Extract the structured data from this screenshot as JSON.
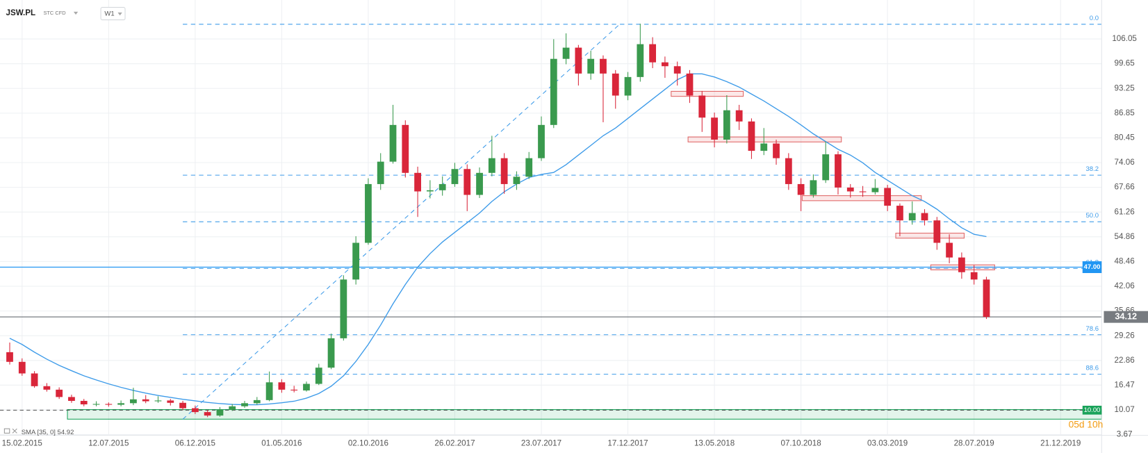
{
  "chart_data": {
    "type": "candlestick",
    "title": "JSW.PL",
    "subtitle": "STC CFD",
    "timeframe": "W1",
    "countdown": "05d 10h",
    "up_color": "#3a9a4e",
    "down_color": "#d9263a",
    "grid": true,
    "x": [
      -3,
      0,
      3,
      6,
      9,
      12,
      15,
      18,
      21,
      24,
      27,
      30,
      33,
      36,
      39,
      42,
      45,
      48,
      51,
      54,
      57,
      60,
      63,
      66,
      69,
      72,
      75,
      78,
      81,
      84,
      87,
      90,
      93,
      96,
      99,
      102,
      105,
      108,
      111,
      114,
      117,
      120,
      123,
      126,
      129,
      132,
      135,
      138,
      141,
      144,
      147,
      150,
      153,
      156,
      159,
      162,
      165,
      168,
      171,
      174,
      177,
      180,
      183,
      186,
      189,
      192,
      195,
      198,
      201,
      204,
      207,
      210,
      213,
      216,
      219,
      222,
      225,
      228,
      231,
      234
    ],
    "ohlc": [
      [
        25.0,
        27.5,
        21.8,
        22.5
      ],
      [
        22.5,
        23.4,
        18.9,
        19.5
      ],
      [
        19.5,
        20.1,
        15.8,
        16.2
      ],
      [
        16.2,
        17.0,
        14.8,
        15.3
      ],
      [
        15.3,
        15.9,
        12.9,
        13.4
      ],
      [
        13.4,
        14.0,
        11.9,
        12.4
      ],
      [
        12.4,
        12.9,
        11.0,
        11.5
      ],
      [
        11.5,
        12.3,
        11.0,
        11.6
      ],
      [
        11.6,
        12.0,
        10.9,
        11.4
      ],
      [
        11.4,
        12.5,
        11.0,
        11.8
      ],
      [
        11.8,
        15.8,
        11.3,
        12.8
      ],
      [
        12.8,
        13.9,
        11.8,
        12.3
      ],
      [
        12.3,
        13.6,
        11.9,
        12.5
      ],
      [
        12.5,
        12.9,
        11.2,
        11.9
      ],
      [
        11.9,
        12.4,
        10.0,
        10.5
      ],
      [
        10.5,
        11.2,
        9.0,
        9.5
      ],
      [
        9.5,
        10.0,
        8.2,
        8.6
      ],
      [
        8.6,
        10.8,
        8.3,
        10.1
      ],
      [
        10.1,
        11.6,
        9.8,
        11.0
      ],
      [
        11.0,
        12.4,
        10.6,
        11.8
      ],
      [
        11.8,
        13.4,
        11.4,
        12.6
      ],
      [
        12.6,
        20.0,
        12.3,
        17.2
      ],
      [
        17.2,
        18.0,
        14.5,
        15.3
      ],
      [
        15.3,
        16.3,
        14.6,
        15.1
      ],
      [
        15.1,
        17.4,
        14.8,
        16.8
      ],
      [
        16.8,
        22.0,
        16.5,
        21.0
      ],
      [
        21.0,
        29.8,
        20.6,
        28.6
      ],
      [
        28.6,
        44.9,
        28.0,
        43.8
      ],
      [
        43.8,
        55.0,
        42.5,
        53.3
      ],
      [
        53.3,
        70.0,
        52.8,
        68.5
      ],
      [
        68.5,
        76.5,
        67.0,
        74.3
      ],
      [
        74.3,
        89.0,
        73.8,
        83.8
      ],
      [
        83.8,
        85.0,
        70.2,
        71.4
      ],
      [
        71.4,
        73.0,
        60.0,
        66.6
      ],
      [
        66.6,
        69.5,
        64.8,
        66.9
      ],
      [
        66.9,
        70.5,
        65.5,
        68.5
      ],
      [
        68.5,
        74.0,
        67.8,
        72.4
      ],
      [
        72.4,
        73.6,
        61.5,
        65.7
      ],
      [
        65.7,
        72.8,
        64.9,
        71.4
      ],
      [
        71.4,
        81.0,
        70.5,
        75.2
      ],
      [
        75.2,
        76.5,
        66.0,
        68.5
      ],
      [
        68.5,
        71.8,
        67.0,
        70.4
      ],
      [
        70.4,
        76.8,
        69.8,
        75.2
      ],
      [
        75.2,
        86.0,
        74.5,
        83.8
      ],
      [
        83.8,
        106.0,
        83.0,
        100.9
      ],
      [
        100.9,
        107.5,
        99.5,
        103.8
      ],
      [
        103.8,
        104.5,
        94.0,
        97.1
      ],
      [
        97.1,
        103.0,
        95.5,
        100.9
      ],
      [
        100.9,
        101.8,
        84.5,
        97.1
      ],
      [
        97.1,
        98.0,
        88.0,
        91.4
      ],
      [
        91.4,
        97.5,
        90.2,
        96.2
      ],
      [
        96.2,
        110.0,
        95.0,
        104.7
      ],
      [
        104.7,
        106.5,
        98.5,
        100.0
      ],
      [
        100.0,
        101.5,
        96.0,
        99.0
      ],
      [
        99.0,
        100.2,
        94.0,
        97.1
      ],
      [
        97.1,
        98.0,
        89.5,
        91.4
      ],
      [
        91.4,
        92.6,
        82.0,
        85.7
      ],
      [
        85.7,
        87.0,
        78.0,
        80.0
      ],
      [
        80.0,
        91.5,
        79.0,
        87.6
      ],
      [
        87.6,
        89.0,
        82.5,
        84.7
      ],
      [
        84.7,
        85.5,
        75.0,
        77.1
      ],
      [
        77.1,
        83.0,
        76.0,
        79.0
      ],
      [
        79.0,
        80.0,
        73.5,
        75.2
      ],
      [
        75.2,
        76.5,
        67.0,
        68.5
      ],
      [
        68.5,
        70.0,
        61.5,
        65.7
      ],
      [
        65.7,
        71.0,
        65.0,
        69.5
      ],
      [
        69.5,
        79.5,
        68.8,
        76.2
      ],
      [
        76.2,
        77.0,
        65.8,
        67.6
      ],
      [
        67.6,
        68.5,
        65.0,
        66.6
      ],
      [
        66.6,
        68.0,
        65.2,
        66.4
      ],
      [
        66.4,
        69.8,
        65.8,
        67.5
      ],
      [
        67.5,
        68.3,
        61.5,
        62.9
      ],
      [
        62.9,
        63.5,
        55.0,
        59.1
      ],
      [
        59.1,
        64.0,
        58.0,
        61.0
      ],
      [
        61.0,
        62.0,
        57.8,
        59.1
      ],
      [
        59.1,
        60.0,
        51.5,
        53.3
      ],
      [
        53.3,
        55.5,
        48.0,
        49.5
      ],
      [
        49.5,
        50.8,
        44.0,
        45.7
      ],
      [
        45.7,
        47.5,
        42.5,
        43.8
      ],
      [
        43.8,
        44.5,
        33.6,
        34.12
      ]
    ],
    "sma": {
      "name": "SMA [35, 0] 54.92",
      "color": "#3d9be9",
      "values": [
        28.6,
        27.0,
        25.0,
        23.2,
        21.6,
        20.2,
        18.9,
        17.8,
        16.8,
        15.9,
        15.1,
        14.4,
        13.8,
        13.3,
        12.8,
        12.4,
        12.0,
        11.7,
        11.5,
        11.4,
        11.4,
        11.6,
        11.9,
        12.3,
        13.1,
        14.3,
        16.2,
        18.9,
        22.6,
        27.0,
        32.0,
        37.5,
        42.5,
        47.0,
        50.5,
        53.5,
        56.0,
        58.5,
        61.0,
        64.0,
        66.5,
        68.5,
        70.2,
        71.0,
        71.5,
        73.5,
        76.0,
        78.5,
        81.0,
        83.0,
        85.5,
        88.0,
        90.5,
        93.0,
        95.5,
        97.0,
        97.0,
        96.2,
        95.0,
        93.6,
        91.8,
        90.0,
        88.0,
        86.0,
        83.8,
        81.5,
        79.5,
        77.5,
        76.0,
        74.0,
        71.5,
        69.5,
        67.5,
        65.5,
        64.0,
        62.0,
        59.5,
        57.2,
        55.5,
        54.92
      ]
    },
    "xlim": [
      -5.36,
      261.96
    ],
    "xticks": [
      {
        "value": 0,
        "label": "15.02.2015"
      },
      {
        "value": 21,
        "label": "12.07.2015"
      },
      {
        "value": 42,
        "label": "06.12.2015"
      },
      {
        "value": 63,
        "label": "01.05.2016"
      },
      {
        "value": 84,
        "label": "02.10.2016"
      },
      {
        "value": 105,
        "label": "26.02.2017"
      },
      {
        "value": 126,
        "label": "23.07.2017"
      },
      {
        "value": 147,
        "label": "17.12.2017"
      },
      {
        "value": 168,
        "label": "13.05.2018"
      },
      {
        "value": 189,
        "label": "07.10.2018"
      },
      {
        "value": 210,
        "label": "03.03.2019"
      },
      {
        "value": 231,
        "label": "28.07.2019"
      },
      {
        "value": 252,
        "label": "21.12.2019"
      }
    ],
    "ylim": [
      3.67,
      116.13
    ],
    "yticks": [
      3.67,
      10.07,
      16.47,
      22.86,
      29.26,
      35.66,
      42.06,
      48.46,
      54.86,
      61.26,
      67.66,
      74.06,
      80.45,
      86.85,
      93.25,
      99.65,
      106.05
    ],
    "fib": {
      "color": "#3d9be9",
      "x_start": 39,
      "levels": [
        {
          "label": "0.0",
          "value": 109.85
        },
        {
          "label": "38.2",
          "value": 70.8
        },
        {
          "label": "50.0",
          "value": 58.75
        },
        {
          "label": "61.8",
          "value": 46.67
        },
        {
          "label": "78.6",
          "value": 29.52
        },
        {
          "label": "88.6",
          "value": 19.3
        }
      ]
    },
    "trend_line": {
      "color": "#3d9be9",
      "x": [
        39,
        145
      ],
      "y": [
        7.65,
        109.85
      ]
    },
    "hlines": [
      {
        "value": 47,
        "label": "47.00",
        "color": "#2196f3"
      },
      {
        "value": 34.12,
        "color": "#777b80"
      }
    ],
    "green_zone": {
      "range": [
        7.67,
        10.15
      ],
      "x_start": 11,
      "value": 10,
      "label": "10.00",
      "color": "#1aa35a"
    },
    "boxes": [
      {
        "x": [
          157.5,
          175
        ],
        "y": [
          91.2,
          92.5
        ]
      },
      {
        "x": [
          161.6,
          198.8
        ],
        "y": [
          79.4,
          80.7
        ]
      },
      {
        "x": [
          189.3,
          218.2
        ],
        "y": [
          64.2,
          65.5
        ]
      },
      {
        "x": [
          212,
          228.6
        ],
        "y": [
          54.5,
          55.8
        ]
      },
      {
        "x": [
          220.5,
          236
        ],
        "y": [
          46.3,
          47.6
        ]
      }
    ]
  }
}
